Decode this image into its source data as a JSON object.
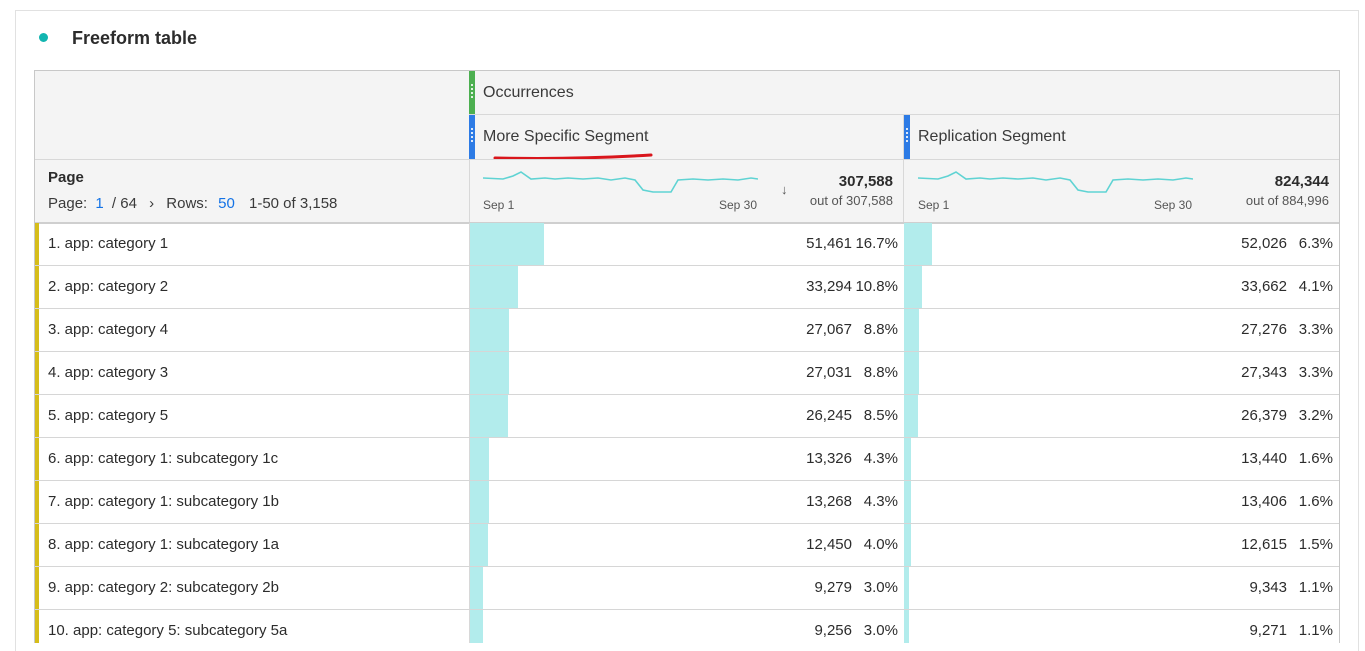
{
  "panel": {
    "title": "Freeform table",
    "accent_color": "#12b5b0"
  },
  "header": {
    "metric": "Occurrences",
    "segments": [
      "More Specific Segment",
      "Replication Segment"
    ],
    "metric_color": "#4caf50",
    "segment_color": "#2d7be5"
  },
  "summary": {
    "dimension": "Page",
    "page_label": "Page:",
    "page_current": "1",
    "page_total": "/ 64",
    "next_icon": "›",
    "rows_label": "Rows:",
    "rows_value": "50",
    "range_text": "1-50 of 3,158",
    "columns": [
      {
        "total": "307,588",
        "out_of": "out of 307,588",
        "spark_start": "Sep 1",
        "spark_end": "Sep 30",
        "sorted": true
      },
      {
        "total": "824,344",
        "out_of": "out of 884,996",
        "spark_start": "Sep 1",
        "spark_end": "Sep 30",
        "sorted": false
      }
    ],
    "sort_icon": "↓"
  },
  "rows": [
    {
      "label": "1.  app: category 1",
      "v1": "51,461",
      "p1": "16.7%",
      "f1": 0.167,
      "v2": "52,026",
      "p2": "6.3%",
      "f2": 0.063
    },
    {
      "label": "2.  app: category 2",
      "v1": "33,294",
      "p1": "10.8%",
      "f1": 0.108,
      "v2": "33,662",
      "p2": "4.1%",
      "f2": 0.041
    },
    {
      "label": "3.  app: category 4",
      "v1": "27,067",
      "p1": "8.8%",
      "f1": 0.088,
      "v2": "27,276",
      "p2": "3.3%",
      "f2": 0.033
    },
    {
      "label": "4.  app: category 3",
      "v1": "27,031",
      "p1": "8.8%",
      "f1": 0.088,
      "v2": "27,343",
      "p2": "3.3%",
      "f2": 0.033
    },
    {
      "label": "5.  app: category 5",
      "v1": "26,245",
      "p1": "8.5%",
      "f1": 0.085,
      "v2": "26,379",
      "p2": "3.2%",
      "f2": 0.032
    },
    {
      "label": "6.  app: category 1: subcategory 1c",
      "v1": "13,326",
      "p1": "4.3%",
      "f1": 0.043,
      "v2": "13,440",
      "p2": "1.6%",
      "f2": 0.016
    },
    {
      "label": "7.  app: category 1: subcategory 1b",
      "v1": "13,268",
      "p1": "4.3%",
      "f1": 0.043,
      "v2": "13,406",
      "p2": "1.6%",
      "f2": 0.016
    },
    {
      "label": "8.  app: category 1: subcategory 1a",
      "v1": "12,450",
      "p1": "4.0%",
      "f1": 0.04,
      "v2": "12,615",
      "p2": "1.5%",
      "f2": 0.015
    },
    {
      "label": "9.  app: category 2: subcategory 2b",
      "v1": "9,279",
      "p1": "3.0%",
      "f1": 0.03,
      "v2": "9,343",
      "p2": "1.1%",
      "f2": 0.011
    },
    {
      "label": "10.  app: category 5: subcategory 5a",
      "v1": "9,256",
      "p1": "3.0%",
      "f1": 0.03,
      "v2": "9,271",
      "p2": "1.1%",
      "f2": 0.011
    }
  ],
  "colors": {
    "bar": "#b2ecec",
    "row_marker": "#d6bd1a",
    "sparkline": "#5fd3d3",
    "annotation_underline": "#d9161c",
    "link": "#1473e6"
  }
}
